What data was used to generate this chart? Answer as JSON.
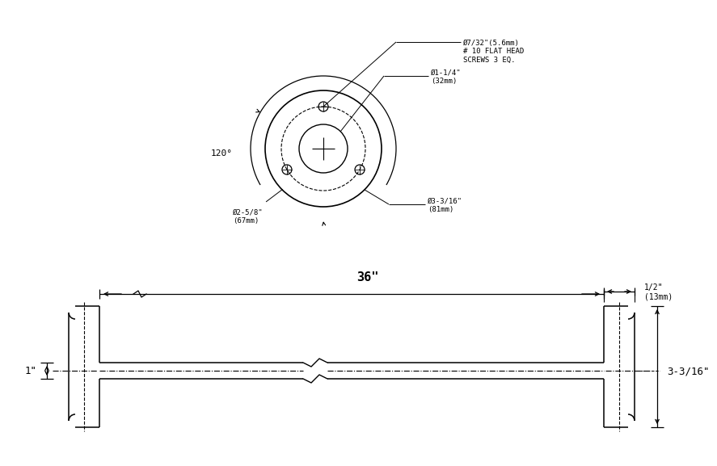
{
  "bg_color": "#ffffff",
  "line_color": "#000000",
  "label_screw": "Ø7/32\"(5.6mm)\n# 10 FLAT HEAD\nSCREWS 3 EQ.",
  "label_bcd": "Ø1-1/4\"\n(32mm)",
  "label_outer": "Ø3-3/16\"\n(81mm)",
  "label_2_5_8": "Ø2-5/8\"\n(67mm)",
  "label_36": "36\"",
  "label_1": "1\"",
  "label_3_316": "3-3/16\"",
  "label_half": "1/2\"\n(13mm)",
  "label_120": "120°"
}
